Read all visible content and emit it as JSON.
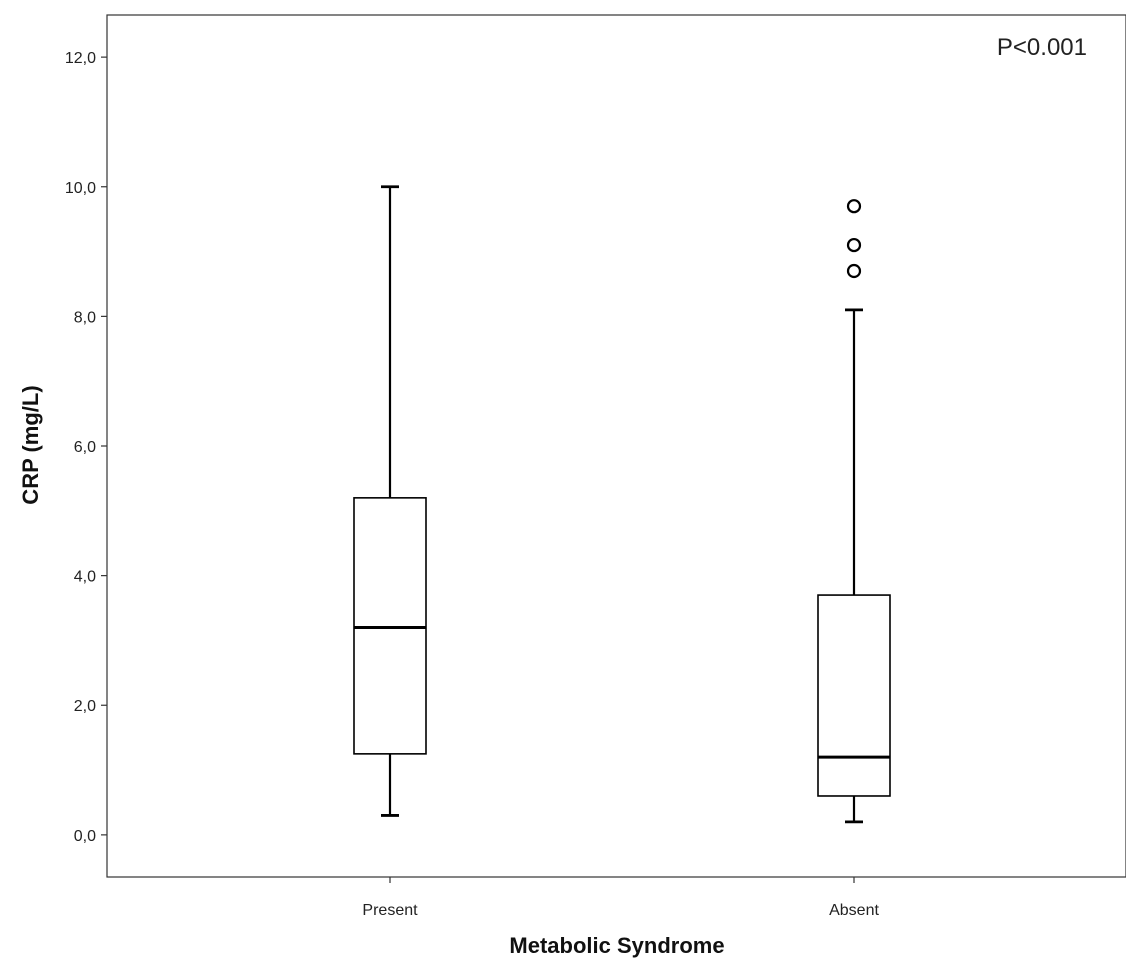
{
  "chart_data": {
    "type": "box",
    "title": "",
    "xlabel": "Metabolic Syndrome",
    "ylabel": "CRP (mg/L)",
    "ylim": [
      -0.65,
      12.65
    ],
    "yticks": [
      0,
      2,
      4,
      6,
      8,
      10,
      12
    ],
    "ytick_labels": [
      "0,0",
      "2,0",
      "4,0",
      "6,0",
      "8,0",
      "10,0",
      "12,0"
    ],
    "grid": false,
    "annotation": "P<0.001",
    "annotation_position": "top-right",
    "categories": [
      "Present",
      "Absent"
    ],
    "boxes": [
      {
        "category": "Present",
        "whisker_low": 0.3,
        "q1": 1.25,
        "median": 3.2,
        "q3": 5.2,
        "whisker_high": 10.0,
        "outliers": []
      },
      {
        "category": "Absent",
        "whisker_low": 0.2,
        "q1": 0.6,
        "median": 1.2,
        "q3": 3.7,
        "whisker_high": 8.1,
        "outliers": [
          8.7,
          9.1,
          9.7
        ]
      }
    ]
  }
}
